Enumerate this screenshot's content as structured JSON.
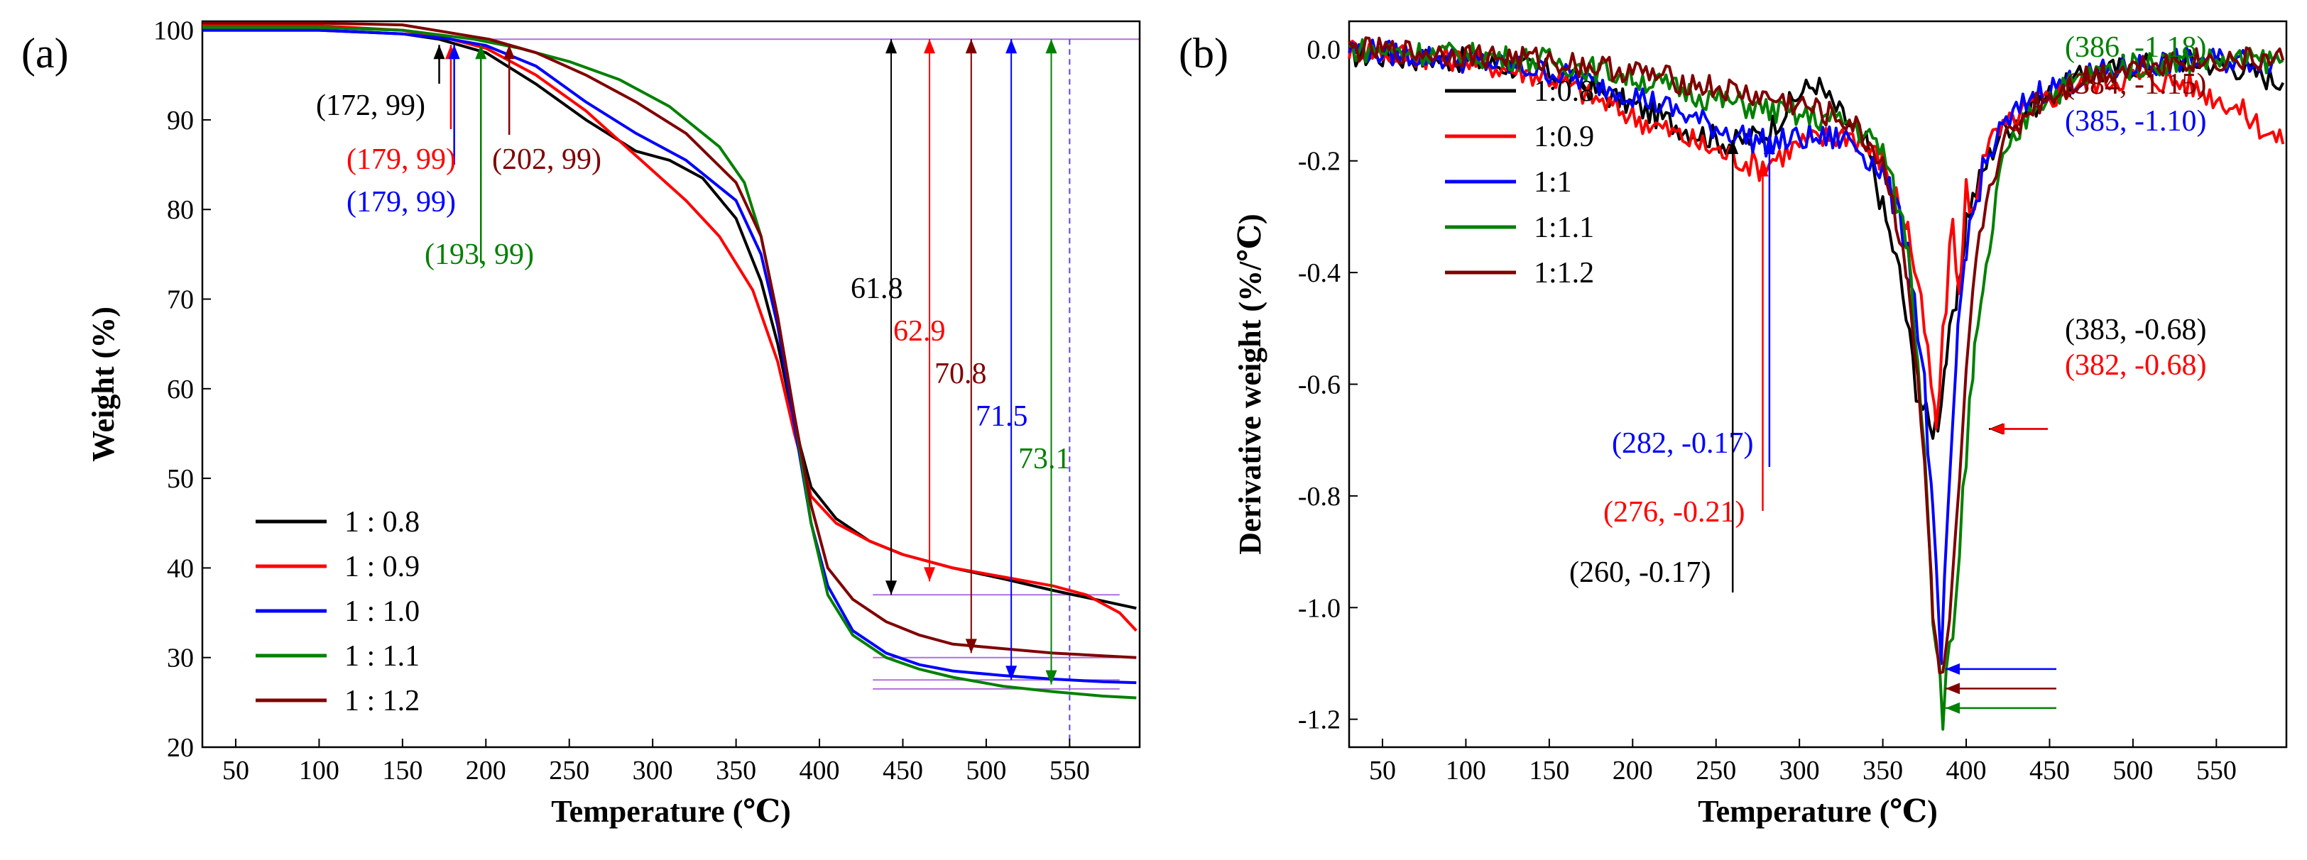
{
  "figure": {
    "panel_a_label": "(a)",
    "panel_b_label": "(b)"
  },
  "chart_data": [
    {
      "type": "line",
      "panel": "(a)",
      "title": "",
      "xlabel": "Temperature (℃)",
      "ylabel": "Weight (%)",
      "xlim": [
        30,
        592
      ],
      "ylim": [
        20,
        101
      ],
      "xticks": [
        50,
        100,
        150,
        200,
        250,
        300,
        350,
        400,
        450,
        500,
        550
      ],
      "yticks": [
        20,
        30,
        40,
        50,
        60,
        70,
        80,
        90,
        100
      ],
      "legend_position": "bottom-left",
      "series": [
        {
          "name": "1 : 0.8",
          "color": "#000000",
          "x": [
            30,
            100,
            150,
            172,
            200,
            230,
            260,
            290,
            310,
            330,
            350,
            365,
            375,
            385,
            395,
            410,
            430,
            450,
            480,
            510,
            540,
            570,
            590
          ],
          "y": [
            100,
            100,
            99.6,
            99,
            97.5,
            94,
            90,
            86.5,
            85.5,
            83.5,
            79,
            72,
            65,
            56,
            49,
            45.5,
            43,
            41.5,
            40,
            38.8,
            37.5,
            36.3,
            35.5
          ]
        },
        {
          "name": "1 : 0.9",
          "color": "#ff0000",
          "x": [
            30,
            100,
            150,
            179,
            200,
            230,
            260,
            290,
            320,
            340,
            360,
            375,
            385,
            395,
            410,
            430,
            450,
            480,
            510,
            540,
            560,
            580,
            590
          ],
          "y": [
            100.5,
            100.5,
            100,
            99,
            98,
            95,
            91,
            86,
            81,
            77,
            71,
            63,
            55,
            48,
            45,
            43,
            41.5,
            40,
            39,
            38,
            37,
            35,
            33
          ]
        },
        {
          "name": "1 : 1.0",
          "color": "#0000ff",
          "x": [
            30,
            100,
            150,
            179,
            200,
            230,
            260,
            290,
            320,
            350,
            365,
            375,
            385,
            395,
            405,
            420,
            440,
            460,
            480,
            510,
            540,
            570,
            590
          ],
          "y": [
            100,
            100,
            99.6,
            99,
            98.3,
            96,
            92,
            88.5,
            85.5,
            81,
            75,
            67,
            56,
            45,
            38,
            33,
            30.5,
            29.2,
            28.5,
            28,
            27.6,
            27.3,
            27.2
          ]
        },
        {
          "name": "1 : 1.1",
          "color": "#008000",
          "x": [
            30,
            100,
            150,
            193,
            220,
            250,
            280,
            310,
            340,
            355,
            365,
            375,
            385,
            395,
            405,
            420,
            440,
            460,
            480,
            510,
            540,
            570,
            590
          ],
          "y": [
            100.3,
            100.3,
            100,
            99,
            98,
            96.5,
            94.5,
            91.5,
            87,
            83,
            77,
            68,
            57,
            45,
            37,
            32.5,
            30,
            28.7,
            27.8,
            26.8,
            26.2,
            25.7,
            25.5
          ]
        },
        {
          "name": "1 : 1.2",
          "color": "#800000",
          "x": [
            30,
            100,
            150,
            202,
            230,
            260,
            290,
            320,
            350,
            365,
            375,
            385,
            395,
            405,
            420,
            440,
            460,
            480,
            510,
            540,
            570,
            590
          ],
          "y": [
            100.8,
            100.8,
            100.6,
            99,
            97.5,
            95,
            92,
            88.5,
            83,
            77,
            68,
            57,
            47,
            40,
            36.5,
            34,
            32.5,
            31.5,
            31,
            30.5,
            30.2,
            30
          ]
        }
      ],
      "reference_lines": {
        "y_99_line_from_x": 200,
        "dashed_vertical_x": 550,
        "short_h_lines_y": [
          37,
          30,
          27.5,
          26.5
        ]
      },
      "annotations": {
        "onset": [
          {
            "label": "(172, 99)",
            "x": 172,
            "color": "#000000"
          },
          {
            "label": "(179, 99)",
            "x": 179,
            "color": "#ff0000"
          },
          {
            "label": "(179, 99)",
            "x": 181,
            "color": "#0000ff"
          },
          {
            "label": "(193, 99)",
            "x": 197,
            "color": "#008000"
          },
          {
            "label": "(202, 99)",
            "x": 214,
            "color": "#800000"
          }
        ],
        "mass_loss": [
          {
            "label": "61.8",
            "x": 443,
            "y_low": 37,
            "color": "#000000"
          },
          {
            "label": "62.9",
            "x": 466,
            "y_low": 38.5,
            "color": "#ff0000"
          },
          {
            "label": "70.8",
            "x": 491,
            "y_low": 30.5,
            "color": "#800000"
          },
          {
            "label": "71.5",
            "x": 515,
            "y_low": 27.5,
            "color": "#0000ff"
          },
          {
            "label": "73.1",
            "x": 539,
            "y_low": 27,
            "color": "#008000"
          }
        ]
      }
    },
    {
      "type": "line",
      "panel": "(b)",
      "title": "",
      "xlabel": "Temperature (℃)",
      "ylabel": "Derivative weight (%/℃)",
      "xlim": [
        30,
        592
      ],
      "ylim": [
        -1.25,
        0.05
      ],
      "y_axis_inverted": true,
      "xticks": [
        50,
        100,
        150,
        200,
        250,
        300,
        350,
        400,
        450,
        500,
        550
      ],
      "yticks": [
        0.0,
        -0.2,
        -0.4,
        -0.6,
        -0.8,
        -1.0,
        -1.2
      ],
      "ytick_labels": [
        "0.0",
        "-0.2",
        "-0.4",
        "-0.6",
        "-0.8",
        "-1.0",
        "-1.2"
      ],
      "legend_position": "top-left",
      "series": [
        {
          "name": "1:0.8",
          "color": "#000000",
          "x": [
            30,
            100,
            150,
            200,
            230,
            260,
            280,
            300,
            310,
            320,
            340,
            360,
            370,
            378,
            383,
            388,
            395,
            400,
            410,
            420,
            440,
            470,
            500,
            530,
            560,
            590
          ],
          "y": [
            -0.01,
            -0.02,
            -0.04,
            -0.1,
            -0.14,
            -0.17,
            -0.15,
            -0.08,
            -0.06,
            -0.1,
            -0.17,
            -0.4,
            -0.6,
            -0.68,
            -0.66,
            -0.55,
            -0.45,
            -0.3,
            -0.22,
            -0.15,
            -0.1,
            -0.05,
            -0.03,
            -0.02,
            -0.03,
            -0.06
          ]
        },
        {
          "name": "1:0.9",
          "color": "#ff0000",
          "x": [
            30,
            100,
            150,
            200,
            240,
            276,
            300,
            330,
            350,
            365,
            375,
            382,
            388,
            392,
            396,
            400,
            405,
            410,
            420,
            440,
            470,
            500,
            530,
            560,
            590
          ],
          "y": [
            0.0,
            -0.02,
            -0.05,
            -0.12,
            -0.17,
            -0.21,
            -0.17,
            -0.15,
            -0.2,
            -0.32,
            -0.5,
            -0.68,
            -0.45,
            -0.3,
            -0.45,
            -0.25,
            -0.3,
            -0.18,
            -0.15,
            -0.1,
            -0.06,
            -0.05,
            -0.06,
            -0.1,
            -0.17
          ]
        },
        {
          "name": "1:1",
          "color": "#0000ff",
          "x": [
            30,
            100,
            150,
            200,
            250,
            282,
            300,
            330,
            350,
            365,
            375,
            380,
            385,
            390,
            395,
            400,
            410,
            420,
            440,
            470,
            500,
            530,
            560,
            590
          ],
          "y": [
            0.0,
            -0.02,
            -0.04,
            -0.08,
            -0.14,
            -0.17,
            -0.16,
            -0.16,
            -0.22,
            -0.35,
            -0.6,
            -0.85,
            -1.1,
            -0.8,
            -0.5,
            -0.35,
            -0.22,
            -0.15,
            -0.08,
            -0.05,
            -0.03,
            -0.02,
            -0.02,
            -0.02
          ]
        },
        {
          "name": "1:1.1",
          "color": "#008000",
          "x": [
            30,
            100,
            150,
            200,
            250,
            300,
            330,
            350,
            365,
            375,
            380,
            386,
            392,
            398,
            405,
            410,
            420,
            440,
            470,
            500,
            530,
            560,
            590
          ],
          "y": [
            0.0,
            -0.01,
            -0.02,
            -0.05,
            -0.09,
            -0.12,
            -0.13,
            -0.18,
            -0.35,
            -0.7,
            -1.0,
            -1.18,
            -1.05,
            -0.8,
            -0.55,
            -0.45,
            -0.22,
            -0.1,
            -0.05,
            -0.03,
            -0.02,
            -0.02,
            -0.02
          ]
        },
        {
          "name": "1:1.2",
          "color": "#800000",
          "x": [
            30,
            100,
            150,
            200,
            250,
            300,
            330,
            350,
            365,
            375,
            380,
            384,
            390,
            396,
            402,
            410,
            420,
            440,
            470,
            500,
            530,
            560,
            590
          ],
          "y": [
            0.0,
            -0.01,
            -0.02,
            -0.04,
            -0.07,
            -0.1,
            -0.13,
            -0.2,
            -0.4,
            -0.75,
            -1.0,
            -1.15,
            -1.05,
            -0.8,
            -0.5,
            -0.3,
            -0.18,
            -0.1,
            -0.05,
            -0.03,
            -0.02,
            -0.02,
            -0.02
          ]
        }
      ],
      "annotations": {
        "peaks": [
          {
            "label": "(386, -1.18)",
            "y": -1.18,
            "color": "#008000"
          },
          {
            "label": "(384, -1.15)",
            "y": -1.145,
            "color": "#800000"
          },
          {
            "label": "(385, -1.10)",
            "y": -1.11,
            "color": "#0000ff"
          },
          {
            "label": "(383, -0.68)",
            "y": -0.68,
            "color": "#000000"
          },
          {
            "label": "(382, -0.68)",
            "y": -0.68,
            "color": "#ff0000"
          }
        ],
        "shoulders": [
          {
            "label": "(282, -0.17)",
            "x": 282,
            "y": -0.17,
            "color": "#0000ff"
          },
          {
            "label": "(276, -0.21)",
            "x": 278,
            "y": -0.21,
            "color": "#ff0000"
          },
          {
            "label": "(260, -0.17)",
            "x": 260,
            "y": -0.17,
            "color": "#000000"
          }
        ]
      }
    }
  ]
}
